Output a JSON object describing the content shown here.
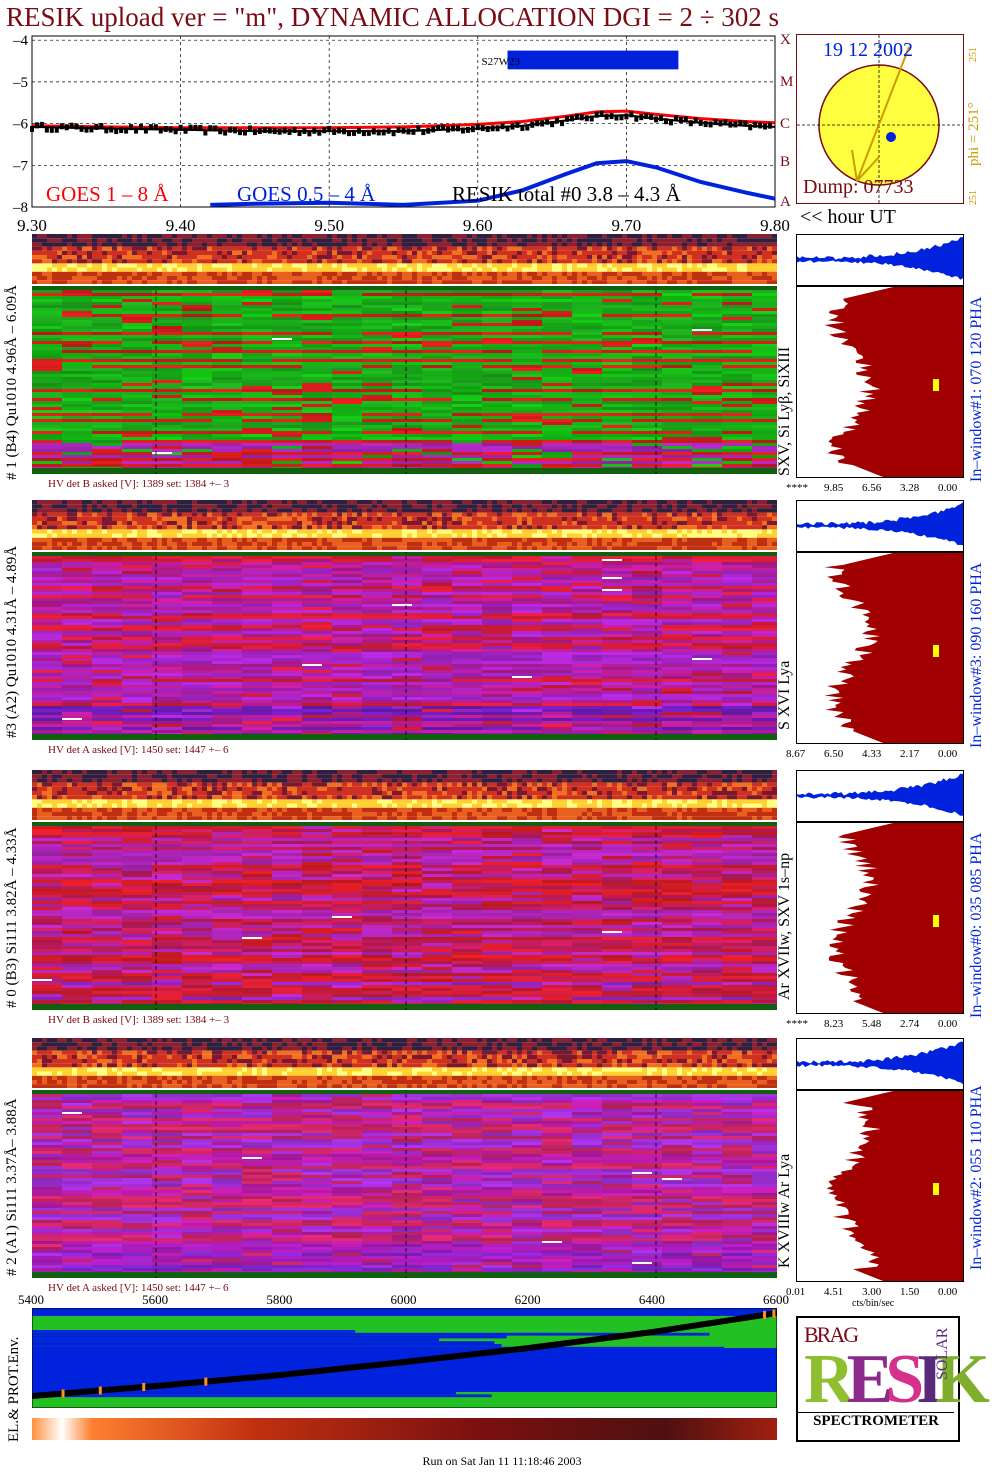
{
  "header": {
    "title": "RESIK upload ver = \"m\", DYNAMIC ALLOCATION  DGI =   2 ÷ 302 s"
  },
  "colors": {
    "title": "#7a0a14",
    "goes_long": "#ff0000",
    "goes_short": "#0022dd",
    "resik_total": "#000000",
    "histogram_fill": "#a00000",
    "sun_fill": "#ffff40",
    "flag_bar": "#0022dd"
  },
  "lightcurve": {
    "legend": {
      "goes_long": "GOES 1 – 8 Å",
      "goes_short": "GOES 0.5 – 4 Å",
      "resik_total": "RESIK total #0  3.8 – 4.3 Å"
    },
    "flag_label": "S27W23",
    "flag_range": [
      9.62,
      9.735
    ],
    "goes_class_letters": [
      "X",
      "M",
      "C",
      "B",
      "A"
    ],
    "x_axis_label": "<< hour UT"
  },
  "sun_panel": {
    "date": "19 12 2002",
    "dump": "Dump: 07733",
    "phi": "phi = 251°",
    "phi_top_tick": "251",
    "phi_bottom_tick": "251"
  },
  "panels": [
    {
      "left_label": "# 1 (B4) Qu1010 4.96Å – 6.09Å",
      "hv_text": "HV det B asked [V]:  1389 set:  1384  +–    3",
      "lines_label": "SXV, Si Lyβ, SiXIII",
      "window_label": "In–window#1:  070 120 PHA",
      "hist_ticks": [
        "****",
        "9.85",
        "6.56",
        "3.28",
        "0.00"
      ]
    },
    {
      "left_label": "#3 (A2) Qu1010  4.31Å – 4.89Å",
      "hv_text": "HV det A asked [V]:  1450 set:  1447  +–    6",
      "lines_label": "S XVI Lya",
      "window_label": "In–window#3:  090 160 PHA",
      "hist_ticks": [
        "8.67",
        "6.50",
        "4.33",
        "2.17",
        "0.00"
      ]
    },
    {
      "left_label": "# 0 (B3) Si111  3.82Å – 4.33Å",
      "hv_text": "HV det B asked [V]:  1389 set:  1384  +–    3",
      "lines_label": "Ar XVIIw,  SXV 1s–np",
      "window_label": "In–window#0:  035 085 PHA",
      "hist_ticks": [
        "****",
        "8.23",
        "5.48",
        "2.74",
        "0.00"
      ]
    },
    {
      "left_label": "# 2 (A1) Si111  3.37Å– 3.88Å",
      "hv_text": "HV det A asked [V]:  1450 set:  1447  +–    6",
      "lines_label": "K XVIIIw  Ar Lya",
      "window_label": "In–window#2:  055 110 PHA",
      "hist_ticks": [
        "0.01",
        "4.51",
        "3.00",
        "1.50",
        "0.00"
      ],
      "hist_unit": "cts/bin/sec"
    }
  ],
  "environment": {
    "label": "EL.& PROT.Env.",
    "x_ticks": [
      "5400",
      "5600",
      "5800",
      "6000",
      "6200",
      "6400",
      "6600"
    ]
  },
  "logo": {
    "letters": "RESIK",
    "top_text": "BRAG",
    "side_text": "SOLAR",
    "subtitle": "SPECTROMETER"
  },
  "footer": {
    "run_text": "Run on Sat Jan 11 11:18:46 2003"
  },
  "chart_data": [
    {
      "type": "line",
      "title": "RESIK upload ver = \"m\", DYNAMIC ALLOCATION  DGI =   2 ÷ 302 s",
      "xlabel": "<< hour UT",
      "ylabel": "",
      "xlim": [
        9.3,
        9.8
      ],
      "ylim": [
        -8,
        -3.9
      ],
      "x_ticks": [
        "9.30",
        "9.40",
        "9.50",
        "9.60",
        "9.70",
        "9.80"
      ],
      "y_ticks": [
        "–4",
        "–5",
        "–6",
        "–7",
        "–8"
      ],
      "grid": true,
      "legend": "bottom",
      "series": [
        {
          "name": "GOES 1 – 8 Å",
          "x": [
            9.3,
            9.35,
            9.4,
            9.45,
            9.5,
            9.55,
            9.6,
            9.63,
            9.66,
            9.68,
            9.7,
            9.72,
            9.75,
            9.78,
            9.8
          ],
          "y": [
            -6.05,
            -6.08,
            -6.1,
            -6.1,
            -6.1,
            -6.08,
            -6.02,
            -5.95,
            -5.82,
            -5.72,
            -5.7,
            -5.78,
            -5.88,
            -5.95,
            -5.98
          ]
        },
        {
          "name": "GOES 0.5 – 4 Å",
          "x": [
            9.42,
            9.45,
            9.5,
            9.55,
            9.6,
            9.63,
            9.66,
            9.68,
            9.7,
            9.72,
            9.75,
            9.78,
            9.8
          ],
          "y": [
            -7.95,
            -7.92,
            -7.9,
            -7.95,
            -7.85,
            -7.6,
            -7.2,
            -6.95,
            -6.9,
            -7.05,
            -7.4,
            -7.65,
            -7.8
          ]
        },
        {
          "name": "RESIK total #0  3.8 – 4.3 Å",
          "x": [
            9.3,
            9.35,
            9.4,
            9.45,
            9.5,
            9.55,
            9.6,
            9.63,
            9.66,
            9.68,
            9.7,
            9.72,
            9.75,
            9.78,
            9.8
          ],
          "y": [
            -6.08,
            -6.12,
            -6.15,
            -6.18,
            -6.18,
            -6.18,
            -6.12,
            -6.05,
            -5.92,
            -5.82,
            -5.8,
            -5.88,
            -5.98,
            -6.05,
            -6.08
          ]
        }
      ]
    },
    {
      "type": "line",
      "title": "",
      "xlabel": "",
      "ylabel": "",
      "xlim": [
        5400,
        6600
      ],
      "ylim": [
        0,
        1
      ],
      "x_ticks": [
        "5400",
        "5600",
        "5800",
        "6000",
        "6200",
        "6400",
        "6600"
      ],
      "series": [
        {
          "name": "",
          "x": [
            5400,
            5600,
            5800,
            6000,
            6200,
            6400,
            6600
          ],
          "y": [
            0.12,
            0.22,
            0.33,
            0.46,
            0.6,
            0.76,
            0.95
          ]
        }
      ]
    }
  ]
}
